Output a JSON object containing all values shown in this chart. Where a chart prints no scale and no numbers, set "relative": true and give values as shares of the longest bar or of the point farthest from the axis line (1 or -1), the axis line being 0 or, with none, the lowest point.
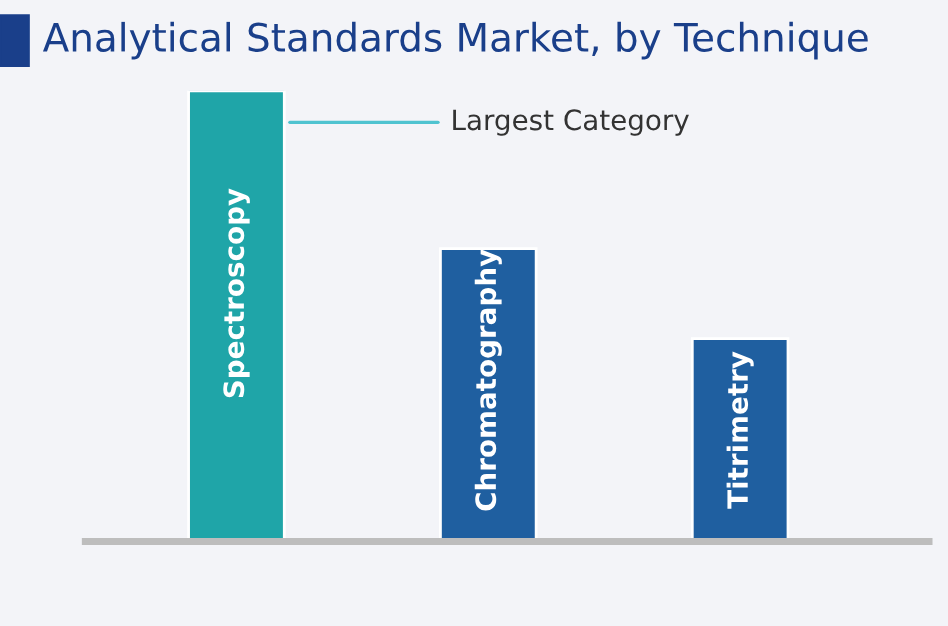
{
  "chart_data": {
    "type": "bar",
    "title": "Analytical Standards Market, by Technique",
    "categories": [
      "Spectroscopy",
      "Chromatography",
      "Titrimetry"
    ],
    "values": [
      1,
      0.65,
      0.45
    ],
    "colors": [
      "#1fa5a8",
      "#1f5fa0",
      "#1f5fa0"
    ],
    "relative": true,
    "annotations": [
      "Largest Category"
    ]
  }
}
